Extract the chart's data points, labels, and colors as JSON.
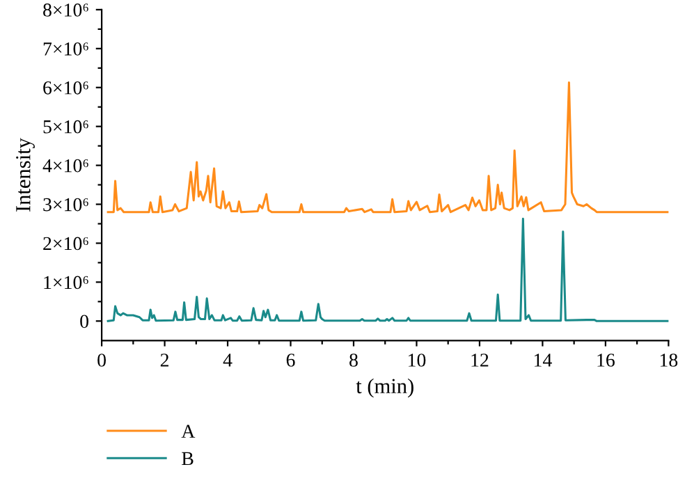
{
  "chart_data": {
    "type": "line",
    "xlabel": "t (min)",
    "ylabel": "Intensity",
    "xlim": [
      0,
      18
    ],
    "ylim": [
      -500000.0,
      8000000.0
    ],
    "xticks": [
      0,
      {
        "value": 1,
        "label": null
      },
      2,
      {
        "value": 3,
        "label": null
      },
      4,
      {
        "value": 5,
        "label": null
      },
      6,
      {
        "value": 7,
        "label": null
      },
      8,
      {
        "value": 9,
        "label": null
      },
      10,
      {
        "value": 11,
        "label": null
      },
      12,
      {
        "value": 13,
        "label": null
      },
      14,
      {
        "value": 15,
        "label": null
      },
      16,
      {
        "value": 17,
        "label": null
      },
      18
    ],
    "yticks": [
      0,
      {
        "value": 500000.0,
        "label": null
      },
      {
        "value": 1000000.0,
        "label": "1×10⁶"
      },
      {
        "value": 1500000.0,
        "label": null
      },
      {
        "value": 2000000.0,
        "label": "2×10⁶"
      },
      {
        "value": 2500000.0,
        "label": null
      },
      {
        "value": 3000000.0,
        "label": "3×10⁶"
      },
      {
        "value": 3500000.0,
        "label": null
      },
      {
        "value": 4000000.0,
        "label": "4×10⁶"
      },
      {
        "value": 4500000.0,
        "label": null
      },
      {
        "value": 5000000.0,
        "label": "5×10⁶"
      },
      {
        "value": 5500000.0,
        "label": null
      },
      {
        "value": 6000000.0,
        "label": "6×10⁶"
      },
      {
        "value": 6500000.0,
        "label": null
      },
      {
        "value": 7000000.0,
        "label": "7×10⁶"
      },
      {
        "value": 7500000.0,
        "label": null
      },
      {
        "value": 8000000.0,
        "label": "8×10⁶"
      }
    ],
    "grid": false,
    "legend": "bottom left",
    "marker": "none",
    "line_style": "solid",
    "series": [
      {
        "name": "A",
        "color": "#ff8c1a",
        "x": [
          0.2,
          0.38,
          0.43,
          0.5,
          0.6,
          0.7,
          1.5,
          1.55,
          1.62,
          1.8,
          1.86,
          1.93,
          2.25,
          2.33,
          2.45,
          2.7,
          2.83,
          2.92,
          3.02,
          3.08,
          3.14,
          3.22,
          3.32,
          3.38,
          3.45,
          3.57,
          3.65,
          3.78,
          3.85,
          3.93,
          4.05,
          4.12,
          4.3,
          4.36,
          4.43,
          4.95,
          5.01,
          5.1,
          5.23,
          5.3,
          5.4,
          6.28,
          6.34,
          6.4,
          7.7,
          7.77,
          7.85,
          8.27,
          8.35,
          8.56,
          8.62,
          9.17,
          9.23,
          9.3,
          9.68,
          9.74,
          9.82,
          10.0,
          10.1,
          10.34,
          10.42,
          10.66,
          10.72,
          10.8,
          11.0,
          11.08,
          11.55,
          11.65,
          11.77,
          11.87,
          11.99,
          12.1,
          12.22,
          12.29,
          12.37,
          12.5,
          12.58,
          12.65,
          12.7,
          12.78,
          12.95,
          13.05,
          13.11,
          13.2,
          13.33,
          13.4,
          13.48,
          13.55,
          13.95,
          14.05,
          14.6,
          14.72,
          14.84,
          14.93,
          14.98,
          15.1,
          15.3,
          15.4,
          15.55,
          15.65,
          15.72,
          18
        ],
        "values": [
          2800000.0,
          2800000.0,
          3600000.0,
          2850000.0,
          2900000.0,
          2800000.0,
          2800000.0,
          3050000.0,
          2800000.0,
          2800000.0,
          3200000.0,
          2800000.0,
          2850000.0,
          3000000.0,
          2820000.0,
          2900000.0,
          3830000.0,
          3100000.0,
          4080000.0,
          3200000.0,
          3330000.0,
          3100000.0,
          3350000.0,
          3730000.0,
          3050000.0,
          3920000.0,
          2950000.0,
          2900000.0,
          3330000.0,
          2900000.0,
          3050000.0,
          2820000.0,
          2820000.0,
          3070000.0,
          2800000.0,
          2820000.0,
          2980000.0,
          2900000.0,
          3260000.0,
          2850000.0,
          2800000.0,
          2800000.0,
          3000000.0,
          2800000.0,
          2800000.0,
          2900000.0,
          2820000.0,
          2880000.0,
          2800000.0,
          2870000.0,
          2800000.0,
          2800000.0,
          3130000.0,
          2800000.0,
          2820000.0,
          3080000.0,
          2850000.0,
          3060000.0,
          2850000.0,
          2960000.0,
          2800000.0,
          2820000.0,
          3250000.0,
          2820000.0,
          2980000.0,
          2800000.0,
          2980000.0,
          2850000.0,
          3170000.0,
          2950000.0,
          3100000.0,
          2850000.0,
          2850000.0,
          3730000.0,
          2850000.0,
          2900000.0,
          3500000.0,
          3000000.0,
          3300000.0,
          2900000.0,
          2850000.0,
          2900000.0,
          4380000.0,
          2950000.0,
          3200000.0,
          2950000.0,
          3180000.0,
          2850000.0,
          3050000.0,
          2820000.0,
          2850000.0,
          3000000.0,
          6130000.0,
          3300000.0,
          3200000.0,
          3000000.0,
          2950000.0,
          3000000.0,
          2900000.0,
          2850000.0,
          2800000.0,
          2800000.0
        ]
      },
      {
        "name": "B",
        "color": "#1a8a8a",
        "x": [
          0.2,
          0.38,
          0.43,
          0.5,
          0.6,
          0.68,
          0.8,
          1.0,
          1.2,
          1.3,
          1.5,
          1.55,
          1.6,
          1.66,
          1.72,
          2.28,
          2.34,
          2.4,
          2.57,
          2.62,
          2.68,
          2.95,
          3.02,
          3.08,
          3.15,
          3.28,
          3.34,
          3.42,
          3.5,
          3.58,
          3.8,
          3.85,
          3.92,
          4.1,
          4.16,
          4.3,
          4.37,
          4.45,
          4.75,
          4.82,
          4.9,
          5.08,
          5.14,
          5.2,
          5.28,
          5.36,
          5.5,
          5.56,
          5.63,
          6.28,
          6.34,
          6.4,
          6.8,
          6.88,
          6.95,
          7.0,
          7.08,
          8.2,
          8.27,
          8.34,
          8.7,
          8.77,
          8.84,
          9.0,
          9.06,
          9.12,
          9.23,
          9.3,
          9.68,
          9.74,
          9.8,
          11.6,
          11.67,
          11.74,
          12.52,
          12.58,
          12.64,
          13.3,
          13.38,
          13.46,
          13.56,
          13.63,
          14.58,
          14.65,
          14.73,
          15.4,
          15.65,
          15.72,
          18
        ],
        "values": [
          0,
          20000.0,
          380000.0,
          200000.0,
          150000.0,
          200000.0,
          150000.0,
          150000.0,
          100000.0,
          20000.0,
          20000.0,
          290000.0,
          80000.0,
          150000.0,
          10000.0,
          20000.0,
          240000.0,
          30000.0,
          30000.0,
          480000.0,
          30000.0,
          50000.0,
          620000.0,
          100000.0,
          50000.0,
          50000.0,
          580000.0,
          50000.0,
          150000.0,
          20000.0,
          20000.0,
          150000.0,
          20000.0,
          80000.0,
          10000.0,
          10000.0,
          120000.0,
          10000.0,
          20000.0,
          330000.0,
          30000.0,
          20000.0,
          260000.0,
          100000.0,
          290000.0,
          20000.0,
          20000.0,
          150000.0,
          10000.0,
          10000.0,
          240000.0,
          10000.0,
          20000.0,
          440000.0,
          100000.0,
          50000.0,
          10000.0,
          10000.0,
          50000.0,
          10000.0,
          10000.0,
          60000.0,
          10000.0,
          10000.0,
          50000.0,
          10000.0,
          80000.0,
          10000.0,
          10000.0,
          80000.0,
          10000.0,
          10000.0,
          200000.0,
          10000.0,
          10000.0,
          680000.0,
          10000.0,
          10000.0,
          2630000.0,
          50000.0,
          150000.0,
          10000.0,
          10000.0,
          2300000.0,
          20000.0,
          30000.0,
          30000.0,
          0,
          0
        ]
      }
    ]
  }
}
